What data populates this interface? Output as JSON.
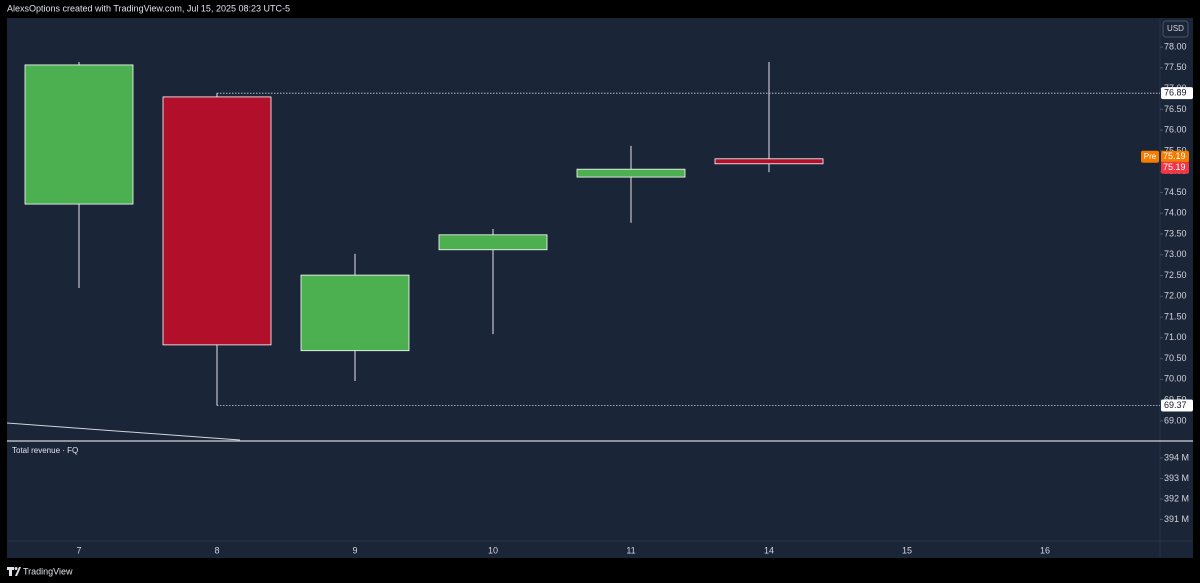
{
  "header": "AlexsOptions created with TradingView.com, Jul 15, 2025 08:23 UTC-5",
  "currency": "USD",
  "brand": "TradingView",
  "chart_data": {
    "type": "candlestick",
    "categories": [
      "7",
      "8",
      "9",
      "10",
      "11",
      "14",
      "15",
      "16"
    ],
    "open": [
      74.22,
      76.8,
      70.69,
      73.12,
      74.87,
      75.31,
      null,
      null
    ],
    "high": [
      77.64,
      76.89,
      73.02,
      73.62,
      75.62,
      77.64,
      null,
      null
    ],
    "low": [
      72.2,
      69.37,
      69.96,
      71.09,
      73.77,
      74.99,
      null,
      null
    ],
    "close": [
      77.57,
      70.83,
      72.51,
      73.48,
      75.06,
      75.19,
      null,
      null
    ],
    "up_color": "#4caf50",
    "down_color": "#b2102a",
    "ylim": [
      68.54,
      78.7
    ],
    "yticks": [
      {
        "value": 69,
        "label": "69.00"
      },
      {
        "value": 69.5,
        "label": "69.50"
      },
      {
        "value": 70,
        "label": "70.00"
      },
      {
        "value": 70.5,
        "label": "70.50"
      },
      {
        "value": 71,
        "label": "71.00"
      },
      {
        "value": 71.5,
        "label": "71.50"
      },
      {
        "value": 72,
        "label": "72.00"
      },
      {
        "value": 72.5,
        "label": "72.50"
      },
      {
        "value": 73,
        "label": "73.00"
      },
      {
        "value": 73.5,
        "label": "73.50"
      },
      {
        "value": 74,
        "label": "74.00"
      },
      {
        "value": 74.5,
        "label": "74.50"
      },
      {
        "value": 75,
        "label": "75.00"
      },
      {
        "value": 75.5,
        "label": "75.50"
      },
      {
        "value": 76,
        "label": "76.00"
      },
      {
        "value": 76.5,
        "label": "76.50"
      },
      {
        "value": 77,
        "label": "77.00"
      },
      {
        "value": 77.5,
        "label": "77.50"
      },
      {
        "value": 78,
        "label": "78.00"
      }
    ],
    "range_high": {
      "value": 76.89,
      "label": "76.89"
    },
    "range_low": {
      "value": 69.37,
      "label": "69.37"
    },
    "premarket": {
      "name": "Pre",
      "value": 75.19,
      "label": "75.19",
      "color": "#f57c00"
    },
    "last_price": {
      "value": 75.19,
      "label": "75.19",
      "color": "#f23645"
    },
    "lower_pane": {
      "title": "Total revenue · FQ",
      "ylim": [
        389.95,
        394.83
      ],
      "yticks": [
        {
          "value": 391,
          "label": "391 M"
        },
        {
          "value": 392,
          "label": "392 M"
        },
        {
          "value": 393,
          "label": "393 M"
        },
        {
          "value": 394,
          "label": "394 M"
        }
      ]
    }
  }
}
